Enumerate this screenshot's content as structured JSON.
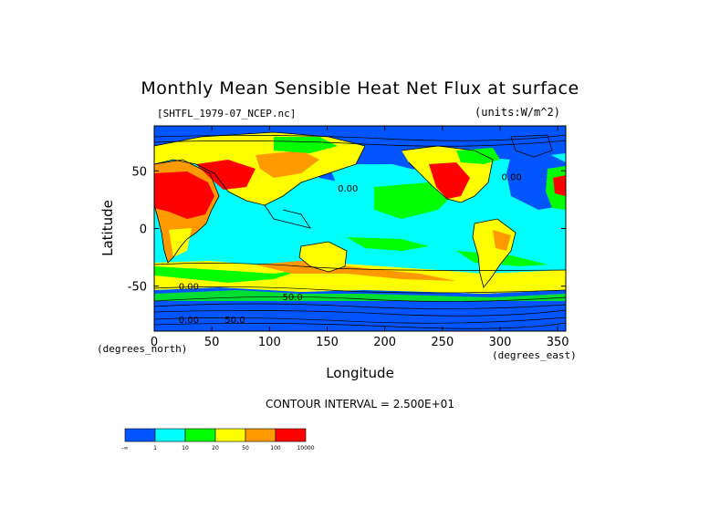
{
  "chart_data": {
    "type": "heatmap",
    "title": "Monthly Mean Sensible Heat Net Flux at surface",
    "file_label": "[SHTFL_1979-07_NCEP.nc]",
    "units_label": "(units:W/m^2)",
    "xlabel": "Longitude",
    "ylabel": "Latitude",
    "x_units": "(degrees_east)",
    "y_units": "(degrees_north)",
    "xlim": [
      0,
      357
    ],
    "ylim": [
      -89,
      89
    ],
    "x_ticks": [
      0,
      50,
      100,
      150,
      200,
      250,
      300,
      350
    ],
    "y_ticks": [
      -50,
      0,
      50
    ],
    "contour_interval": "CONTOUR INTERVAL = 2.500E+01",
    "legend": {
      "boundary_labels": [
        "-∞",
        "1",
        "10",
        "20",
        "50",
        "100",
        "10000"
      ],
      "colors": [
        "#0055ff",
        "#00ffff",
        "#00ff00",
        "#ffff00",
        "#ff9900",
        "#ff0000"
      ]
    },
    "contour_labels": [
      {
        "lon": 168,
        "lat": 32,
        "text": "0.00"
      },
      {
        "lon": 310,
        "lat": 42,
        "text": "0.00"
      },
      {
        "lon": 30,
        "lat": -53,
        "text": "0.00"
      },
      {
        "lon": 120,
        "lat": -62,
        "text": "50.0"
      },
      {
        "lon": 30,
        "lat": -82,
        "text": "0.00"
      },
      {
        "lon": 70,
        "lat": -82,
        "text": "50.0"
      }
    ]
  }
}
